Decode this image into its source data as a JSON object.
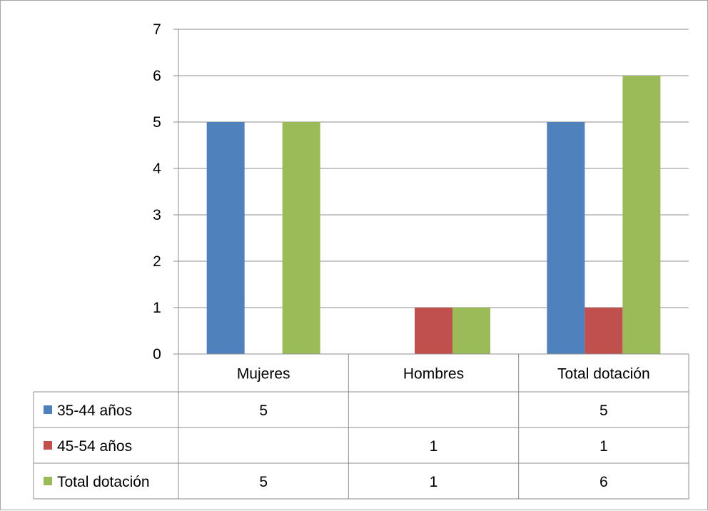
{
  "chart_data": {
    "type": "bar",
    "categories": [
      "Mujeres",
      "Hombres",
      "Total dotación"
    ],
    "series": [
      {
        "name": "35-44 años",
        "values": [
          5,
          null,
          5
        ],
        "color": "#4f81bd"
      },
      {
        "name": "45-54 años",
        "values": [
          null,
          1,
          1
        ],
        "color": "#c0504d"
      },
      {
        "name": "Total dotación",
        "values": [
          5,
          1,
          6
        ],
        "color": "#9bbb59"
      }
    ],
    "ylim": [
      0,
      7
    ],
    "yticks": [
      "0",
      "1",
      "2",
      "3",
      "4",
      "5",
      "6",
      "7"
    ],
    "grid": true,
    "legend": "data-table",
    "table": {
      "rows": [
        [
          "5",
          "",
          "5"
        ],
        [
          "",
          "1",
          "1"
        ],
        [
          "5",
          "1",
          "6"
        ]
      ]
    }
  }
}
